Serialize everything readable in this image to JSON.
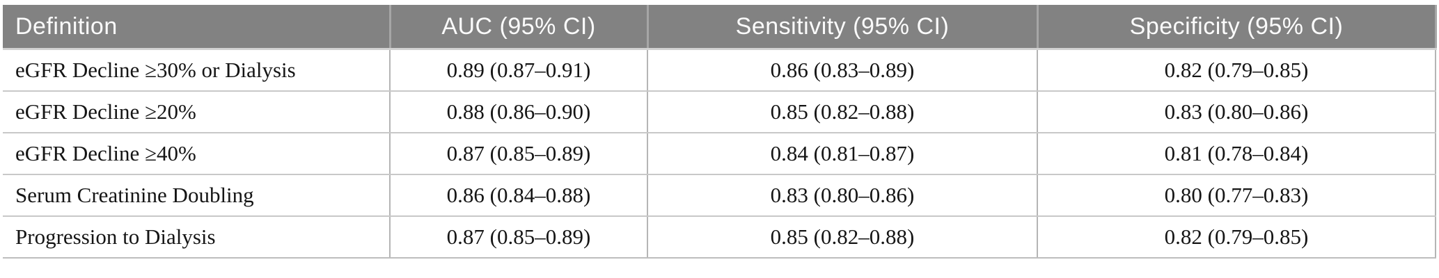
{
  "table": {
    "columns": [
      "Definition",
      "AUC (95% CI)",
      "Sensitivity (95% CI)",
      "Specificity (95% CI)"
    ],
    "rows": [
      {
        "definition": "eGFR Decline ≥30% or Dialysis",
        "auc": "0.89 (0.87–0.91)",
        "sensitivity": "0.86 (0.83–0.89)",
        "specificity": "0.82 (0.79–0.85)"
      },
      {
        "definition": "eGFR Decline ≥20%",
        "auc": "0.88 (0.86–0.90)",
        "sensitivity": "0.85 (0.82–0.88)",
        "specificity": "0.83 (0.80–0.86)"
      },
      {
        "definition": "eGFR Decline ≥40%",
        "auc": "0.87 (0.85–0.89)",
        "sensitivity": "0.84 (0.81–0.87)",
        "specificity": "0.81 (0.78–0.84)"
      },
      {
        "definition": "Serum Creatinine Doubling",
        "auc": "0.86 (0.84–0.88)",
        "sensitivity": "0.83 (0.80–0.86)",
        "specificity": "0.80 (0.77–0.83)"
      },
      {
        "definition": "Progression to Dialysis",
        "auc": "0.87 (0.85–0.89)",
        "sensitivity": "0.85 (0.82–0.88)",
        "specificity": "0.82 (0.79–0.85)"
      }
    ]
  },
  "colors": {
    "header_bg": "#828282",
    "header_text": "#fbfbfb",
    "body_text": "#151515",
    "row_border": "#c8c8c8",
    "column_border": "#b5b5b5"
  }
}
